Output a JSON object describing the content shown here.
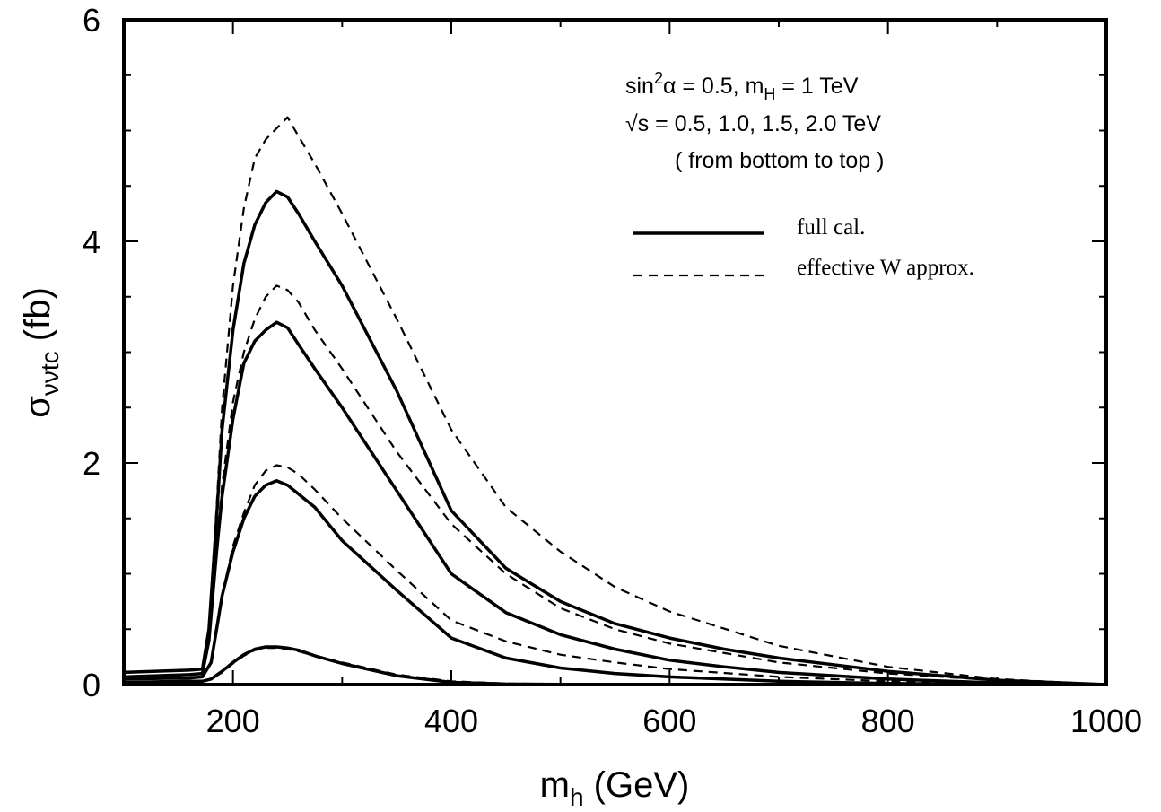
{
  "chart_data": {
    "type": "line",
    "xlabel": {
      "main": "m",
      "sub": "h",
      "rest": " (GeV)"
    },
    "ylabel": {
      "main": "σ",
      "sub": "ννtc",
      "rest": " (fb)"
    },
    "xlim": [
      100,
      1000
    ],
    "ylim": [
      0,
      6
    ],
    "xticks": [
      200,
      400,
      600,
      800,
      1000
    ],
    "yticks": [
      0,
      2,
      4,
      6
    ],
    "grid": false,
    "annotations": {
      "line1": {
        "a": "sin",
        "sup": "2",
        "b": "α = 0.5, m",
        "sub": "H",
        "c": " = 1 TeV"
      },
      "line2": "√s = 0.5, 1.0, 1.5, 2.0 TeV",
      "line3": "( from bottom to top )"
    },
    "legend": {
      "placement": "top-right",
      "entries": [
        {
          "label": "full cal.",
          "style": "solid"
        },
        {
          "label": "effective W approx.",
          "style": "dashed"
        }
      ]
    },
    "series": [
      {
        "style": "solid",
        "x": [
          100,
          160,
          172,
          180,
          190,
          200,
          210,
          220,
          230,
          240,
          250,
          260,
          275,
          300,
          350,
          400,
          450,
          500,
          550,
          600,
          650,
          700,
          800,
          900,
          1000
        ],
        "values": [
          0.02,
          0.03,
          0.03,
          0.05,
          0.12,
          0.2,
          0.27,
          0.32,
          0.34,
          0.34,
          0.33,
          0.31,
          0.26,
          0.19,
          0.08,
          0.02,
          0.005,
          0.002,
          0.001,
          0,
          0,
          0,
          0,
          0,
          0
        ]
      },
      {
        "style": "dashed",
        "x": [
          100,
          160,
          172,
          180,
          190,
          200,
          210,
          220,
          230,
          240,
          250,
          260,
          275,
          300,
          350,
          400,
          450,
          500,
          550,
          600,
          700,
          800,
          1000
        ],
        "values": [
          0.02,
          0.03,
          0.03,
          0.05,
          0.11,
          0.19,
          0.26,
          0.31,
          0.33,
          0.33,
          0.32,
          0.3,
          0.26,
          0.2,
          0.09,
          0.03,
          0.01,
          0.004,
          0.002,
          0.001,
          0,
          0,
          0
        ]
      },
      {
        "style": "solid",
        "x": [
          100,
          160,
          172,
          180,
          185,
          190,
          200,
          210,
          220,
          230,
          240,
          250,
          260,
          275,
          300,
          350,
          400,
          450,
          500,
          550,
          600,
          700,
          800,
          900,
          1000
        ],
        "values": [
          0.05,
          0.06,
          0.07,
          0.2,
          0.5,
          0.8,
          1.2,
          1.5,
          1.7,
          1.8,
          1.84,
          1.8,
          1.72,
          1.6,
          1.3,
          0.85,
          0.42,
          0.24,
          0.15,
          0.1,
          0.07,
          0.03,
          0.01,
          0.003,
          0
        ]
      },
      {
        "style": "dashed",
        "x": [
          100,
          160,
          172,
          180,
          185,
          190,
          200,
          210,
          220,
          230,
          240,
          250,
          260,
          275,
          300,
          350,
          400,
          450,
          500,
          550,
          600,
          700,
          800,
          900,
          1000
        ],
        "values": [
          0.05,
          0.06,
          0.07,
          0.2,
          0.5,
          0.8,
          1.25,
          1.55,
          1.8,
          1.93,
          1.98,
          1.96,
          1.9,
          1.76,
          1.5,
          1.03,
          0.58,
          0.39,
          0.27,
          0.2,
          0.14,
          0.07,
          0.03,
          0.01,
          0
        ]
      },
      {
        "style": "solid",
        "x": [
          100,
          160,
          172,
          178,
          185,
          190,
          200,
          210,
          220,
          230,
          240,
          250,
          260,
          275,
          300,
          350,
          400,
          450,
          500,
          550,
          600,
          650,
          700,
          800,
          900,
          1000
        ],
        "values": [
          0.07,
          0.09,
          0.1,
          0.4,
          1.2,
          1.7,
          2.4,
          2.9,
          3.1,
          3.2,
          3.27,
          3.22,
          3.07,
          2.85,
          2.5,
          1.75,
          1.0,
          0.65,
          0.45,
          0.32,
          0.22,
          0.16,
          0.11,
          0.05,
          0.015,
          0
        ]
      },
      {
        "style": "dashed",
        "x": [
          100,
          160,
          172,
          178,
          185,
          190,
          200,
          210,
          220,
          230,
          240,
          250,
          260,
          275,
          300,
          350,
          400,
          450,
          500,
          550,
          600,
          700,
          800,
          900,
          1000
        ],
        "values": [
          0.07,
          0.09,
          0.1,
          0.4,
          1.25,
          1.8,
          2.55,
          3.0,
          3.3,
          3.5,
          3.6,
          3.56,
          3.45,
          3.2,
          2.85,
          2.1,
          1.45,
          1.0,
          0.69,
          0.5,
          0.37,
          0.2,
          0.1,
          0.04,
          0
        ]
      },
      {
        "style": "solid",
        "x": [
          100,
          160,
          172,
          178,
          185,
          190,
          200,
          210,
          220,
          230,
          240,
          250,
          260,
          275,
          300,
          350,
          400,
          450,
          500,
          550,
          600,
          650,
          700,
          800,
          900,
          1000
        ],
        "values": [
          0.11,
          0.13,
          0.14,
          0.5,
          1.5,
          2.3,
          3.2,
          3.8,
          4.15,
          4.35,
          4.45,
          4.4,
          4.25,
          4.0,
          3.6,
          2.65,
          1.57,
          1.05,
          0.75,
          0.55,
          0.42,
          0.32,
          0.24,
          0.12,
          0.04,
          0
        ]
      },
      {
        "style": "dashed",
        "x": [
          100,
          160,
          172,
          178,
          185,
          190,
          200,
          210,
          220,
          230,
          240,
          250,
          260,
          275,
          300,
          350,
          400,
          450,
          500,
          550,
          600,
          700,
          800,
          900,
          1000
        ],
        "values": [
          0.11,
          0.13,
          0.14,
          0.5,
          1.6,
          2.5,
          3.6,
          4.3,
          4.75,
          4.92,
          5.02,
          5.12,
          4.95,
          4.7,
          4.25,
          3.3,
          2.3,
          1.6,
          1.2,
          0.88,
          0.66,
          0.35,
          0.16,
          0.05,
          0
        ]
      }
    ]
  }
}
